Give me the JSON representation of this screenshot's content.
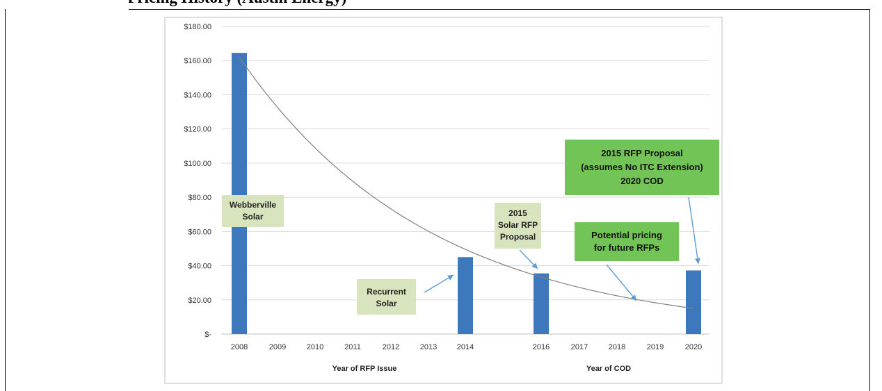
{
  "heading": {
    "text": "Figure: Solar PPA Pricing History (Austin Energy)"
  },
  "chart_data": {
    "type": "bar",
    "y_tick_labels": [
      "$-",
      "$20.00",
      "$40.00",
      "$60.00",
      "$80.00",
      "$100.00",
      "$120.00",
      "$140.00",
      "$160.00",
      "$180.00"
    ],
    "ylim": [
      0,
      180
    ],
    "grid": true,
    "legend": "none",
    "group_rfp": {
      "xlabel": "Year of RFP Issue",
      "categories": [
        "2008",
        "2009",
        "2010",
        "2011",
        "2012",
        "2013",
        "2014"
      ],
      "values": [
        164.5,
        null,
        null,
        null,
        null,
        null,
        45
      ]
    },
    "group_cod": {
      "xlabel": "Year of COD",
      "categories": [
        "2016",
        "2017",
        "2018",
        "2019",
        "2020"
      ],
      "values": [
        35.5,
        null,
        null,
        null,
        37.2
      ]
    },
    "trendline": {
      "start_category": "2008",
      "start_value": 162,
      "end_category": "2020",
      "end_value": 15
    },
    "annotations": {
      "webberville": [
        "Webberville",
        "Solar"
      ],
      "recurrent": [
        "Recurrent",
        "Solar"
      ],
      "proposal_2015": [
        "2015",
        "Solar RFP",
        "Proposal"
      ],
      "potential": [
        "Potential pricing",
        "for future RFPs"
      ],
      "no_itc": [
        "2015 RFP Proposal",
        "(assumes No ITC Extension)",
        "2020 COD"
      ]
    },
    "colors": {
      "bar": "#3d78bd",
      "trendline": "#7f7f7f",
      "grid": "#d9d9d9",
      "callout_light": "#d7e4bd",
      "callout_strong": "#72c457",
      "arrow": "#5b9bd5"
    }
  }
}
